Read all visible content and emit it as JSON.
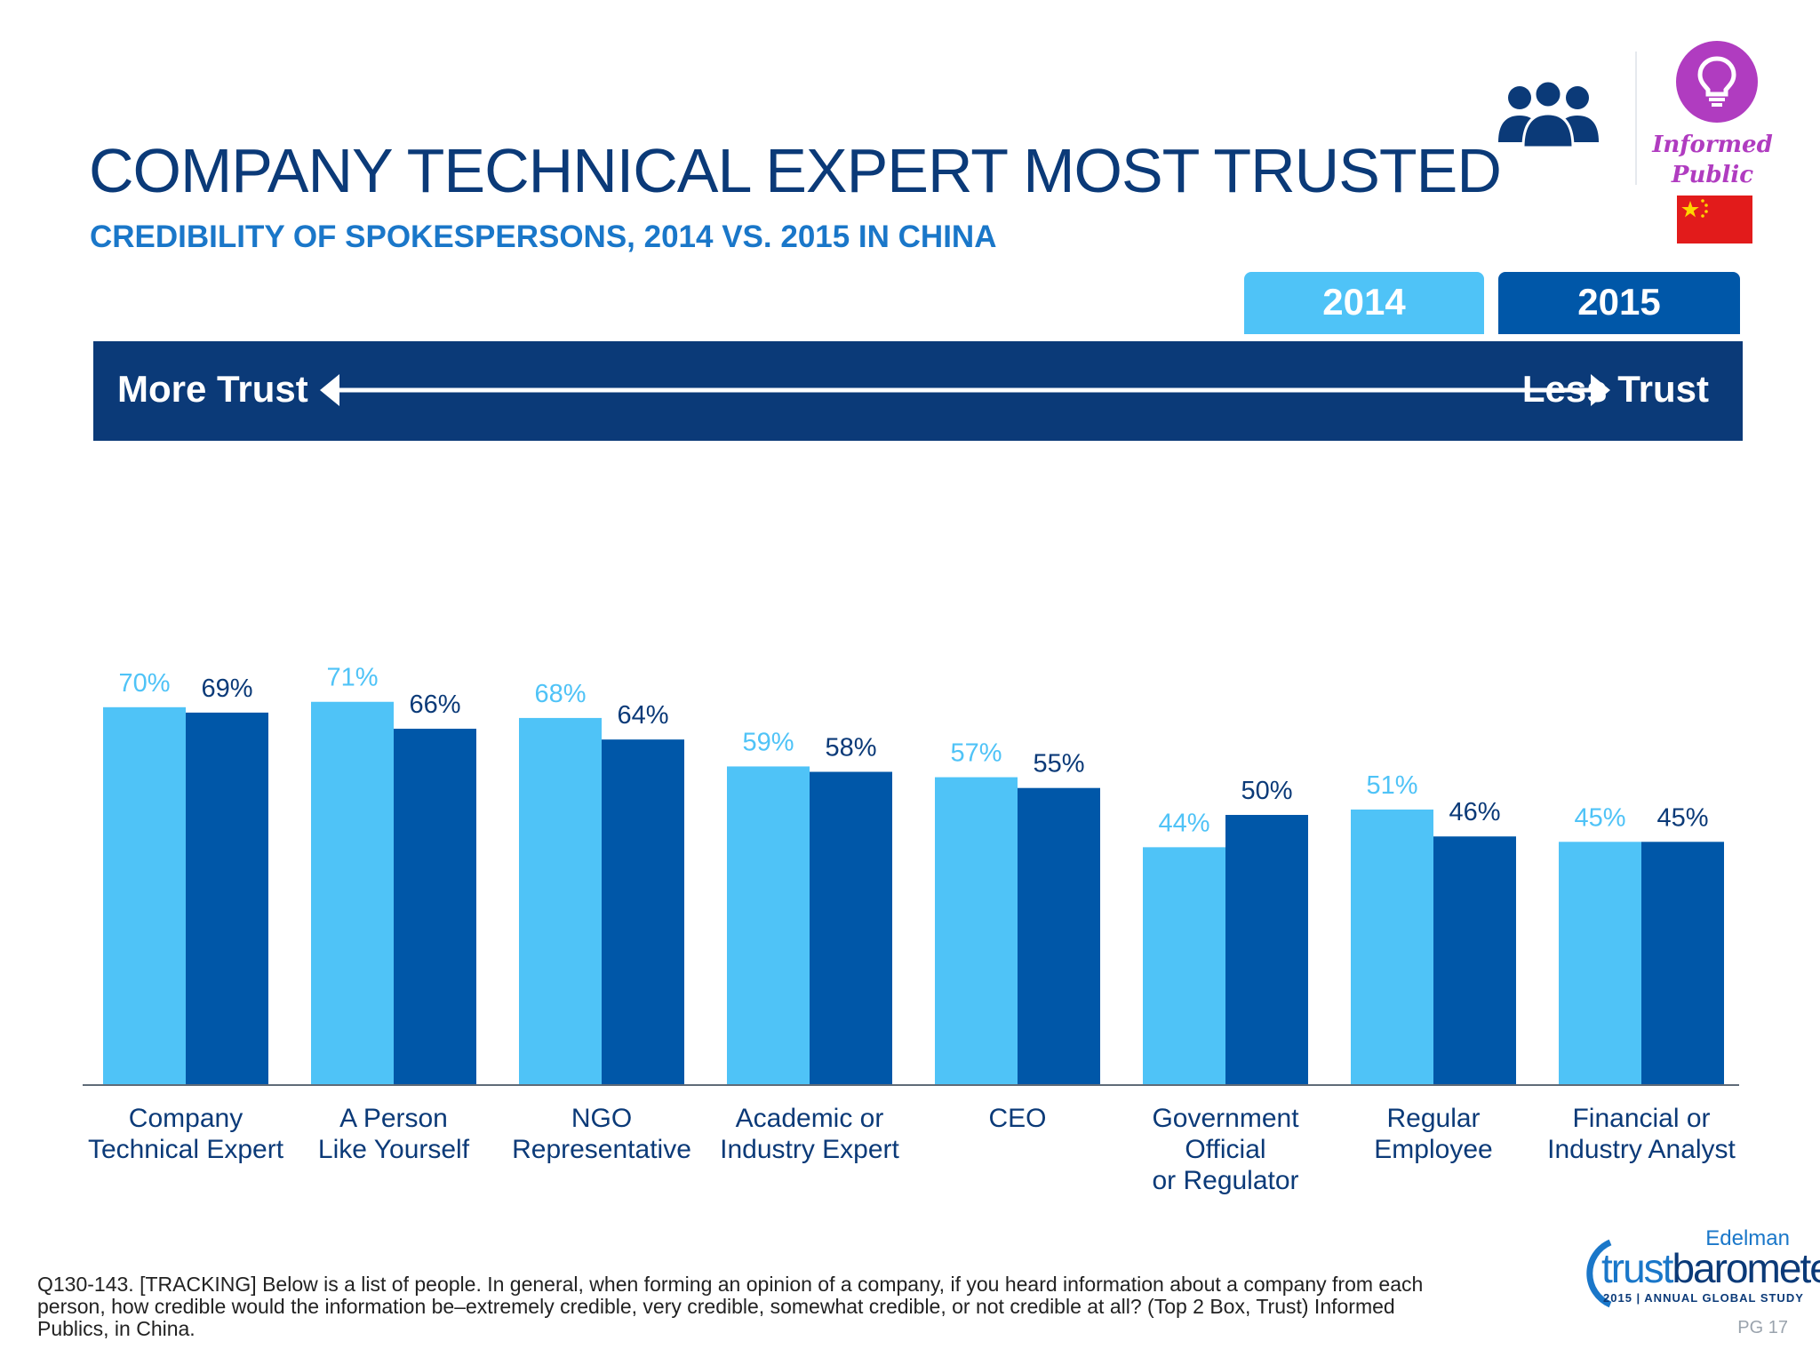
{
  "header": {
    "title": "COMPANY TECHNICAL EXPERT MOST TRUSTED",
    "subtitle": "CREDIBILITY OF SPOKESPERSONS, 2014 VS. 2015 IN CHINA"
  },
  "badge": {
    "label_line1": "Informed",
    "label_line2": "Public"
  },
  "legend": {
    "year_2014": "2014",
    "year_2015": "2015"
  },
  "trust_band": {
    "left": "More Trust",
    "right": "Less Trust"
  },
  "colors": {
    "series_2014": "#4fc3f7",
    "series_2015": "#0057a8",
    "band": "#0b3a78",
    "accent": "#1a77c9"
  },
  "chart_data": {
    "type": "bar",
    "title": "CREDIBILITY OF SPOKESPERSONS, 2014 VS. 2015 IN CHINA",
    "xlabel": "",
    "ylabel": "",
    "ylim": [
      0,
      100
    ],
    "categories": [
      [
        "Company",
        "Technical Expert"
      ],
      [
        "A Person",
        "Like Yourself"
      ],
      [
        "NGO",
        "Representative"
      ],
      [
        "Academic or",
        "Industry Expert"
      ],
      [
        "CEO"
      ],
      [
        "Government",
        "Official",
        "or Regulator"
      ],
      [
        "Regular",
        "Employee"
      ],
      [
        "Financial or",
        "Industry Analyst"
      ]
    ],
    "series": [
      {
        "name": "2014",
        "values": [
          70,
          71,
          68,
          59,
          57,
          44,
          51,
          45
        ]
      },
      {
        "name": "2015",
        "values": [
          69,
          66,
          64,
          58,
          55,
          50,
          46,
          45
        ]
      }
    ],
    "value_suffix": "%"
  },
  "footnote": "Q130-143. [TRACKING] Below is a list of people. In general, when forming an opinion of a company, if you heard information about a company from each person, how credible would the information be–extremely credible, very credible, somewhat credible, or not credible at all? (Top 2 Box, Trust) Informed Publics, in China.",
  "logo": {
    "brand": "Edelman",
    "product_a": "trust",
    "product_b": "barometer",
    "study": "2015 | ANNUAL GLOBAL STUDY"
  },
  "page_number": "PG 17"
}
